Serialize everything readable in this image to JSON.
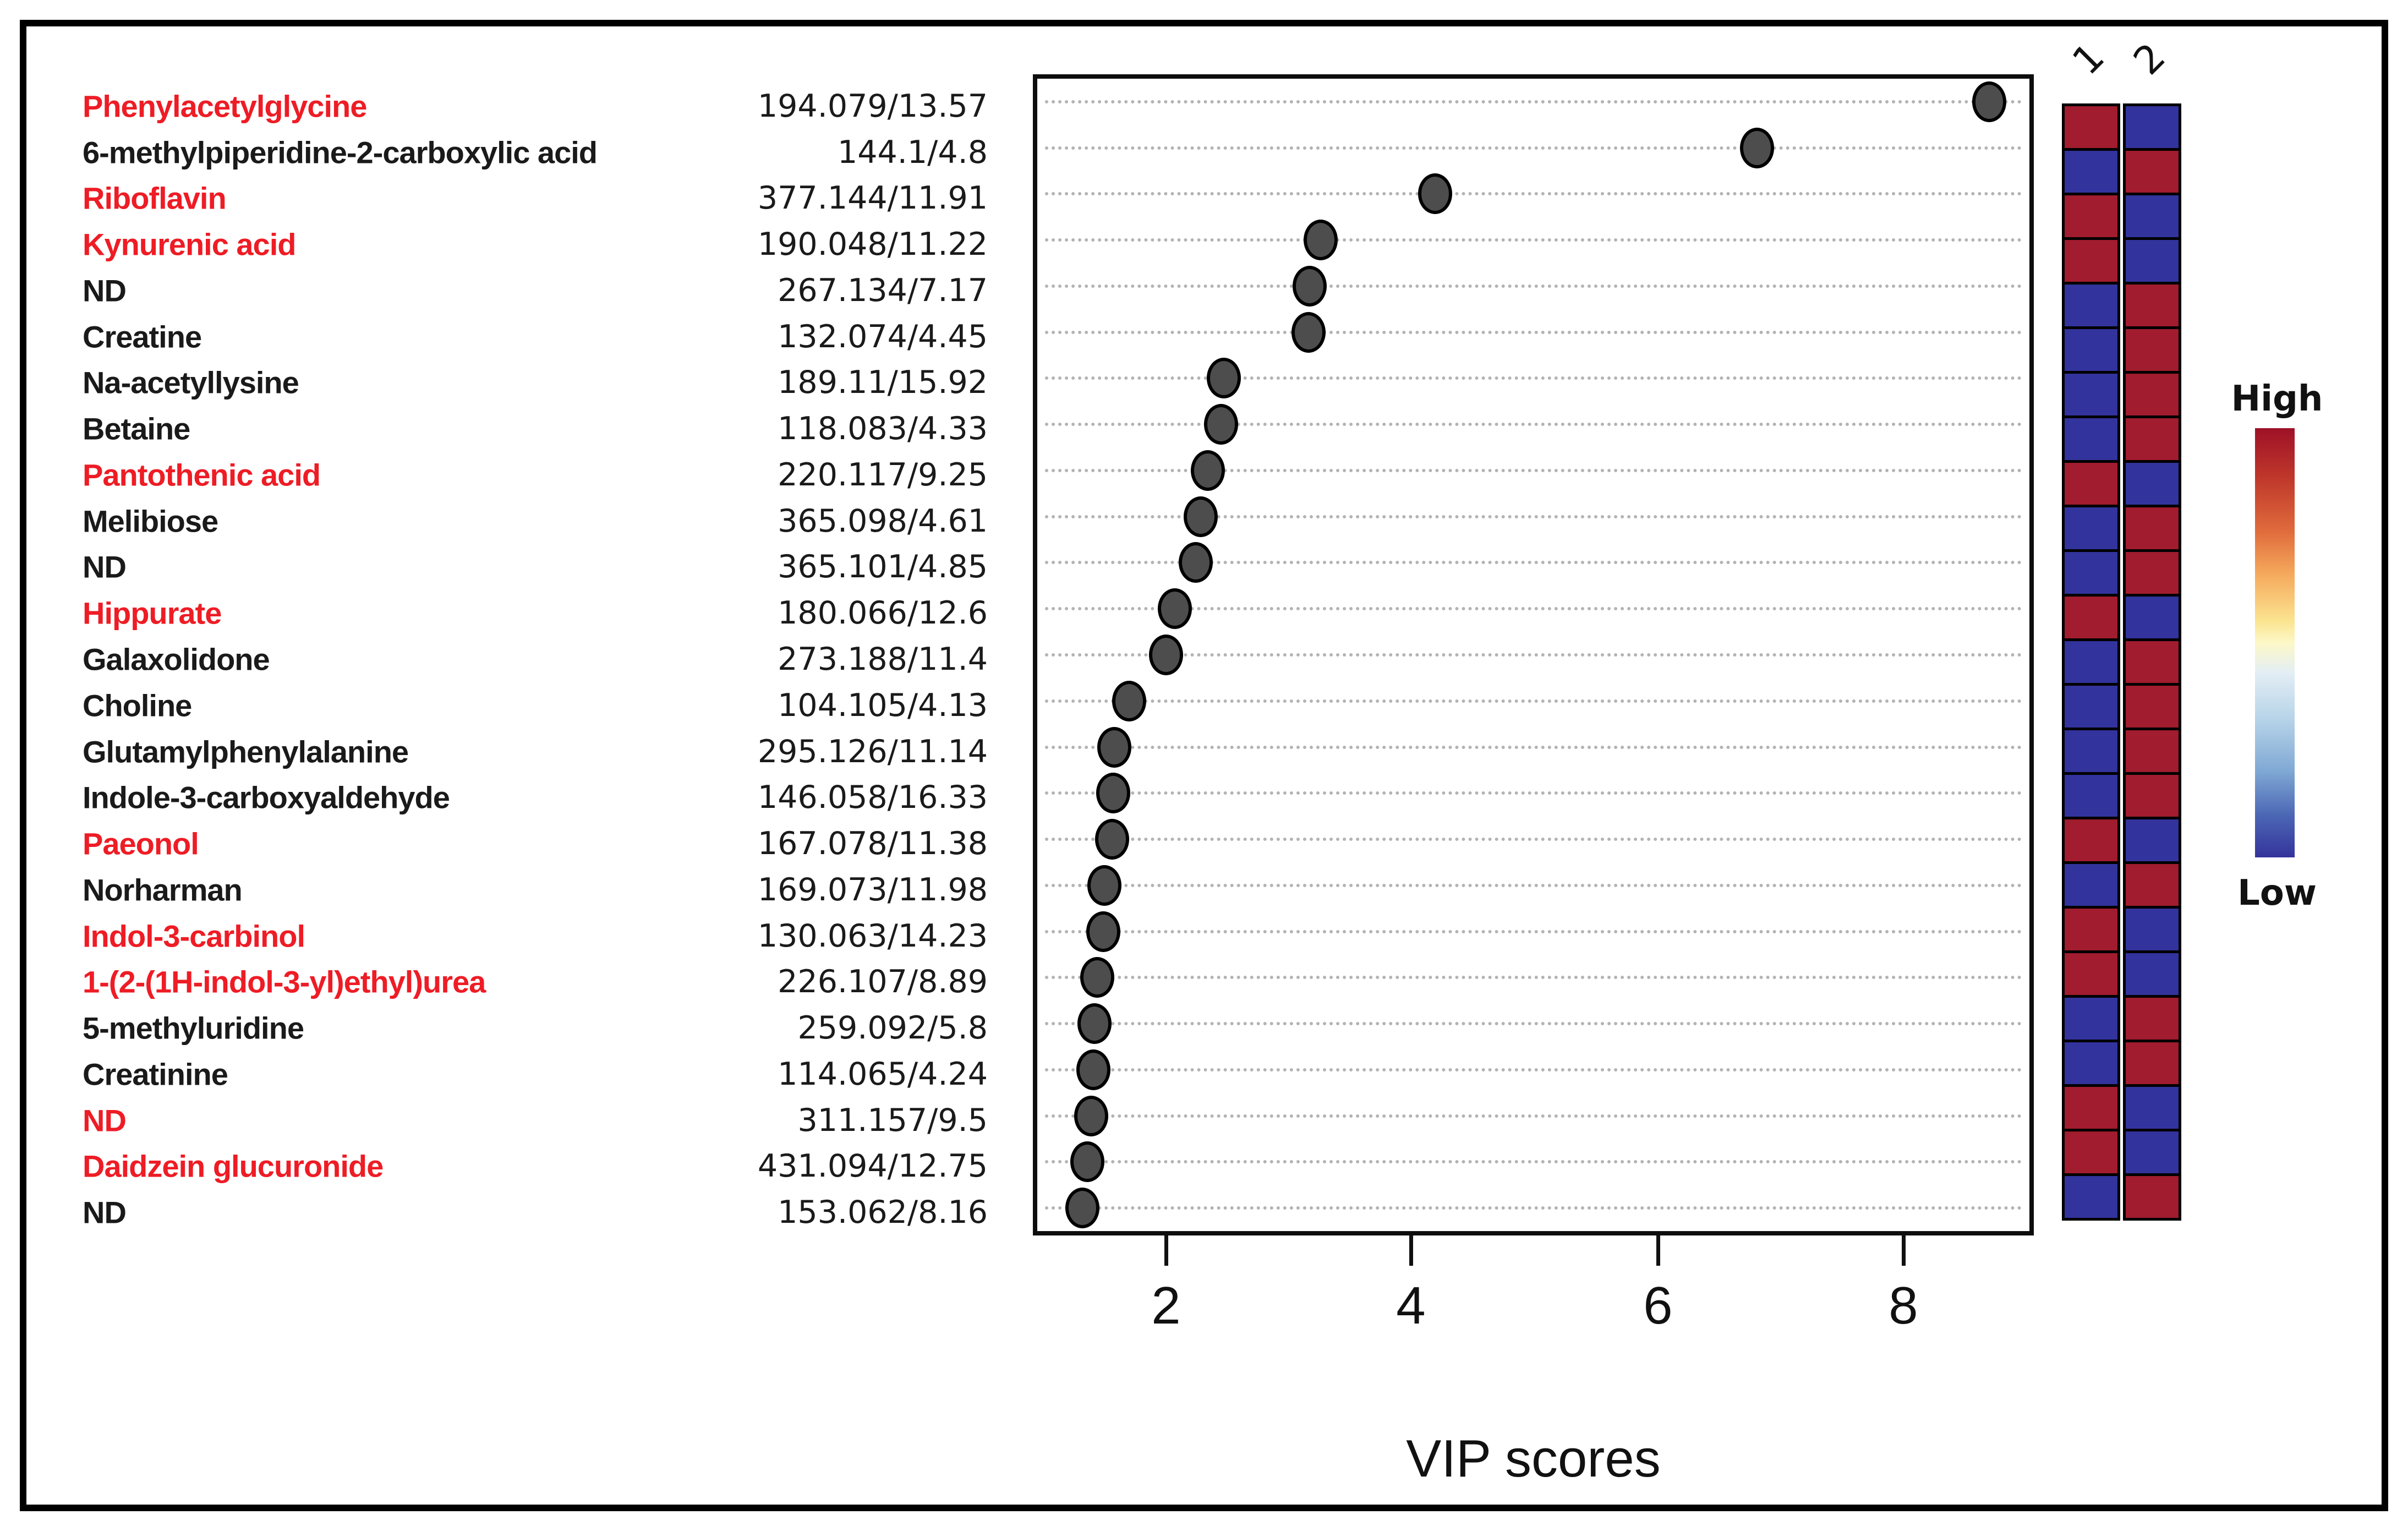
{
  "figure": {
    "xlabel": "VIP scores",
    "x_ticks": [
      "2",
      "4",
      "6",
      "8"
    ],
    "heatmap_columns": [
      "1",
      "2"
    ],
    "legend": {
      "high_label": "High",
      "low_label": "Low"
    },
    "colors": {
      "name_red": "#ee1c25",
      "name_black": "#1a1a1a",
      "heat_high": "#a01c2e",
      "heat_low": "#33339d",
      "dot_fill": "#4d4d4d",
      "dot_stroke": "#000000",
      "gridline": "#b3b3b3"
    }
  },
  "chart_data": {
    "type": "scatter",
    "title": "",
    "xlabel": "VIP scores",
    "ylabel": "",
    "xlim": [
      0.95,
      9.0
    ],
    "x_ticks": [
      2,
      4,
      6,
      8
    ],
    "grid": "dotted horizontal rows",
    "legend_position": "right, vertical gradient High to Low",
    "rows": [
      {
        "name": "Phenylacetylglycine",
        "name_color": "red",
        "mz_rt": "194.079/13.57",
        "vip": 8.7,
        "heat_1": "high",
        "heat_2": "low"
      },
      {
        "name": "6-methylpiperidine-2-carboxylic acid",
        "name_color": "black",
        "mz_rt": "144.1/4.8",
        "vip": 6.81,
        "heat_1": "low",
        "heat_2": "high"
      },
      {
        "name": "Riboflavin",
        "name_color": "red",
        "mz_rt": "377.144/11.91",
        "vip": 4.19,
        "heat_1": "high",
        "heat_2": "low"
      },
      {
        "name": "Kynurenic acid",
        "name_color": "red",
        "mz_rt": "190.048/11.22",
        "vip": 3.26,
        "heat_1": "high",
        "heat_2": "low"
      },
      {
        "name": "ND",
        "name_color": "black",
        "mz_rt": "267.134/7.17",
        "vip": 3.17,
        "heat_1": "low",
        "heat_2": "high"
      },
      {
        "name": "Creatine",
        "name_color": "black",
        "mz_rt": "132.074/4.45",
        "vip": 3.16,
        "heat_1": "low",
        "heat_2": "high"
      },
      {
        "name": "Na-acetyllysine",
        "name_color": "black",
        "mz_rt": "189.11/15.92",
        "vip": 2.47,
        "heat_1": "low",
        "heat_2": "high"
      },
      {
        "name": "Betaine",
        "name_color": "black",
        "mz_rt": "118.083/4.33",
        "vip": 2.45,
        "heat_1": "low",
        "heat_2": "high"
      },
      {
        "name": "Pantothenic acid",
        "name_color": "red",
        "mz_rt": "220.117/9.25",
        "vip": 2.34,
        "heat_1": "high",
        "heat_2": "low"
      },
      {
        "name": "Melibiose",
        "name_color": "black",
        "mz_rt": "365.098/4.61",
        "vip": 2.28,
        "heat_1": "low",
        "heat_2": "high"
      },
      {
        "name": "ND",
        "name_color": "black",
        "mz_rt": "365.101/4.85",
        "vip": 2.24,
        "heat_1": "low",
        "heat_2": "high"
      },
      {
        "name": "Hippurate",
        "name_color": "red",
        "mz_rt": "180.066/12.6",
        "vip": 2.07,
        "heat_1": "high",
        "heat_2": "low"
      },
      {
        "name": "Galaxolidone",
        "name_color": "black",
        "mz_rt": "273.188/11.4",
        "vip": 2.0,
        "heat_1": "low",
        "heat_2": "high"
      },
      {
        "name": "Choline",
        "name_color": "black",
        "mz_rt": "104.105/4.13",
        "vip": 1.7,
        "heat_1": "low",
        "heat_2": "high"
      },
      {
        "name": "Glutamylphenylalanine",
        "name_color": "black",
        "mz_rt": "295.126/11.14",
        "vip": 1.58,
        "heat_1": "low",
        "heat_2": "high"
      },
      {
        "name": "Indole-3-carboxyaldehyde",
        "name_color": "black",
        "mz_rt": "146.058/16.33",
        "vip": 1.57,
        "heat_1": "low",
        "heat_2": "high"
      },
      {
        "name": "Paeonol",
        "name_color": "red",
        "mz_rt": "167.078/11.38",
        "vip": 1.56,
        "heat_1": "high",
        "heat_2": "low"
      },
      {
        "name": "Norharman",
        "name_color": "black",
        "mz_rt": "169.073/11.98",
        "vip": 1.5,
        "heat_1": "low",
        "heat_2": "high"
      },
      {
        "name": "Indol-3-carbinol",
        "name_color": "red",
        "mz_rt": "130.063/14.23",
        "vip": 1.49,
        "heat_1": "high",
        "heat_2": "low"
      },
      {
        "name": "1-(2-(1H-indol-3-yl)ethyl)urea",
        "name_color": "red",
        "mz_rt": "226.107/8.89",
        "vip": 1.44,
        "heat_1": "high",
        "heat_2": "low"
      },
      {
        "name": "5-methyluridine",
        "name_color": "black",
        "mz_rt": "259.092/5.8",
        "vip": 1.42,
        "heat_1": "low",
        "heat_2": "high"
      },
      {
        "name": "Creatinine",
        "name_color": "black",
        "mz_rt": "114.065/4.24",
        "vip": 1.41,
        "heat_1": "low",
        "heat_2": "high"
      },
      {
        "name": "ND",
        "name_color": "red",
        "mz_rt": "311.157/9.5",
        "vip": 1.39,
        "heat_1": "high",
        "heat_2": "low"
      },
      {
        "name": "Daidzein glucuronide",
        "name_color": "red",
        "mz_rt": "431.094/12.75",
        "vip": 1.36,
        "heat_1": "high",
        "heat_2": "low"
      },
      {
        "name": "ND",
        "name_color": "black",
        "mz_rt": "153.062/8.16",
        "vip": 1.32,
        "heat_1": "low",
        "heat_2": "high"
      }
    ]
  }
}
